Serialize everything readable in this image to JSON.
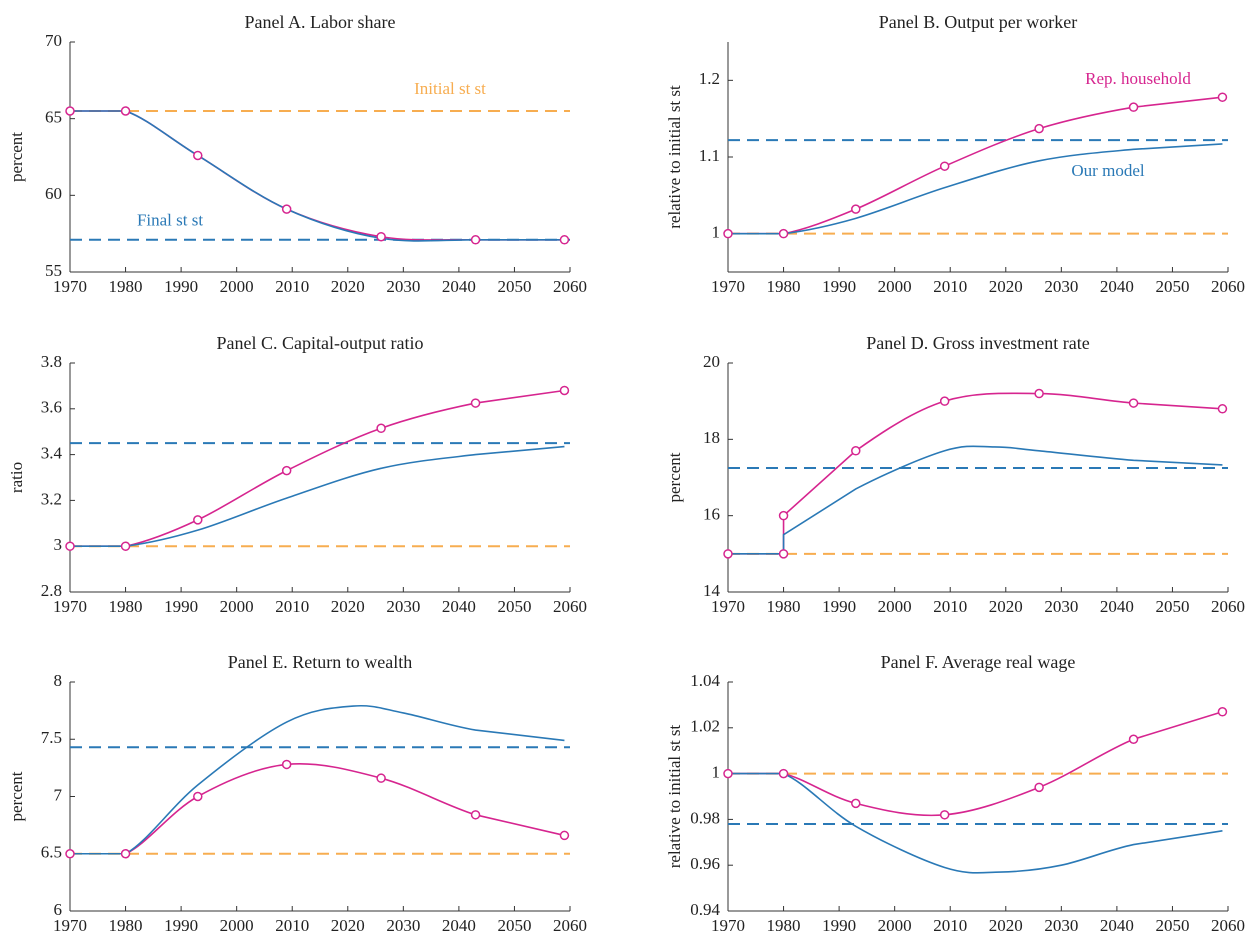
{
  "chart_data": [
    {
      "type": "line",
      "title": "Panel A. Labor share",
      "y_label": "percent",
      "xlim": [
        1970,
        2060
      ],
      "xticks": [
        1970,
        1980,
        1990,
        2000,
        2010,
        2020,
        2030,
        2040,
        2050,
        2060
      ],
      "ylim": [
        55,
        70
      ],
      "yticks": [
        55,
        60,
        65,
        70
      ],
      "series": [
        {
          "color": "#d6258f",
          "marker": "o",
          "x": [
            1970,
            1980,
            1993,
            2009,
            2026,
            2043,
            2059
          ],
          "values": [
            65.5,
            65.5,
            62.6,
            59.1,
            57.3,
            57.1,
            57.1
          ]
        },
        {
          "color": "#2a79b6",
          "x": [
            1970,
            1980,
            1993,
            2009,
            2026,
            2043,
            2059
          ],
          "values": [
            65.5,
            65.5,
            62.6,
            59.1,
            57.2,
            57.1,
            57.1
          ]
        },
        {
          "name": "Initial st st",
          "color": "#f7ad50",
          "dash": true,
          "x": [
            1970,
            2060
          ],
          "values": [
            65.5,
            65.5
          ]
        },
        {
          "name": "Final st st",
          "color": "#2a79b6",
          "dash": true,
          "x": [
            1970,
            2060
          ],
          "values": [
            57.1,
            57.1
          ]
        }
      ]
    },
    {
      "type": "line",
      "title": "Panel B. Output per worker",
      "y_label": "relative to initial st st",
      "xlim": [
        1970,
        2060
      ],
      "xticks": [
        1970,
        1980,
        1990,
        2000,
        2010,
        2020,
        2030,
        2040,
        2050,
        2060
      ],
      "ylim": [
        0.95,
        1.25
      ],
      "yticks": [
        1,
        1.1,
        1.2
      ],
      "series": [
        {
          "name": "Rep. household",
          "color": "#d6258f",
          "marker": "o",
          "x": [
            1970,
            1980,
            1993,
            2009,
            2026,
            2043,
            2059
          ],
          "values": [
            1,
            1,
            1.032,
            1.088,
            1.137,
            1.165,
            1.178
          ]
        },
        {
          "name": "Our model",
          "color": "#2a79b6",
          "x": [
            1970,
            1980,
            1993,
            2009,
            2026,
            2043,
            2059
          ],
          "values": [
            1,
            1,
            1.02,
            1.06,
            1.095,
            1.11,
            1.117
          ]
        },
        {
          "color": "#f7ad50",
          "dash": true,
          "x": [
            1970,
            2060
          ],
          "values": [
            1,
            1
          ]
        },
        {
          "color": "#2a79b6",
          "dash": true,
          "x": [
            1970,
            2060
          ],
          "values": [
            1.122,
            1.122
          ]
        }
      ]
    },
    {
      "type": "line",
      "title": "Panel C. Capital-output ratio",
      "y_label": "ratio",
      "xlim": [
        1970,
        2060
      ],
      "xticks": [
        1970,
        1980,
        1990,
        2000,
        2010,
        2020,
        2030,
        2040,
        2050,
        2060
      ],
      "ylim": [
        2.8,
        3.8
      ],
      "yticks": [
        2.8,
        3,
        3.2,
        3.4,
        3.6,
        3.8
      ],
      "series": [
        {
          "color": "#d6258f",
          "marker": "o",
          "x": [
            1970,
            1980,
            1993,
            2009,
            2026,
            2043,
            2059
          ],
          "values": [
            3,
            3,
            3.115,
            3.33,
            3.515,
            3.625,
            3.68
          ]
        },
        {
          "color": "#2a79b6",
          "x": [
            1970,
            1980,
            1993,
            2009,
            2026,
            2043,
            2059
          ],
          "values": [
            3,
            3,
            3.07,
            3.21,
            3.34,
            3.4,
            3.435
          ]
        },
        {
          "color": "#f7ad50",
          "dash": true,
          "x": [
            1970,
            2060
          ],
          "values": [
            3,
            3
          ]
        },
        {
          "color": "#2a79b6",
          "dash": true,
          "x": [
            1970,
            2060
          ],
          "values": [
            3.45,
            3.45
          ]
        }
      ]
    },
    {
      "type": "line",
      "title": "Panel D. Gross investment rate",
      "y_label": "percent",
      "xlim": [
        1970,
        2060
      ],
      "xticks": [
        1970,
        1980,
        1990,
        2000,
        2010,
        2020,
        2030,
        2040,
        2050,
        2060
      ],
      "ylim": [
        14,
        20
      ],
      "yticks": [
        14,
        16,
        18,
        20
      ],
      "series": [
        {
          "color": "#d6258f",
          "marker": "o",
          "x": [
            1970,
            1980,
            1980,
            1993,
            2009,
            2026,
            2043,
            2059
          ],
          "values": [
            15,
            15,
            16,
            17.7,
            19,
            19.2,
            18.95,
            18.8
          ]
        },
        {
          "color": "#2a79b6",
          "x": [
            1970,
            1980,
            1980,
            1993,
            2009,
            2018,
            2026,
            2043,
            2059
          ],
          "values": [
            15,
            15,
            15.5,
            16.7,
            17.7,
            17.8,
            17.7,
            17.45,
            17.33
          ]
        },
        {
          "color": "#f7ad50",
          "dash": true,
          "x": [
            1970,
            2060
          ],
          "values": [
            15,
            15
          ]
        },
        {
          "color": "#2a79b6",
          "dash": true,
          "x": [
            1970,
            2060
          ],
          "values": [
            17.25,
            17.25
          ]
        }
      ]
    },
    {
      "type": "line",
      "title": "Panel E. Return to wealth",
      "y_label": "percent",
      "xlim": [
        1970,
        2060
      ],
      "xticks": [
        1970,
        1980,
        1990,
        2000,
        2010,
        2020,
        2030,
        2040,
        2050,
        2060
      ],
      "ylim": [
        6,
        8
      ],
      "yticks": [
        6,
        6.5,
        7,
        7.5,
        8
      ],
      "series": [
        {
          "color": "#d6258f",
          "marker": "o",
          "x": [
            1970,
            1980,
            1993,
            2009,
            2026,
            2043,
            2059
          ],
          "values": [
            6.5,
            6.5,
            7,
            7.28,
            7.16,
            6.84,
            6.66
          ]
        },
        {
          "color": "#2a79b6",
          "x": [
            1970,
            1980,
            1993,
            2009,
            2021,
            2030,
            2043,
            2059
          ],
          "values": [
            6.5,
            6.5,
            7.1,
            7.65,
            7.79,
            7.73,
            7.58,
            7.49
          ]
        },
        {
          "color": "#f7ad50",
          "dash": true,
          "x": [
            1970,
            2060
          ],
          "values": [
            6.5,
            6.5
          ]
        },
        {
          "color": "#2a79b6",
          "dash": true,
          "x": [
            1970,
            2060
          ],
          "values": [
            7.43,
            7.43
          ]
        }
      ]
    },
    {
      "type": "line",
      "title": "Panel F. Average real wage",
      "y_label": "relative to initial st st",
      "xlim": [
        1970,
        2060
      ],
      "xticks": [
        1970,
        1980,
        1990,
        2000,
        2010,
        2020,
        2030,
        2040,
        2050,
        2060
      ],
      "ylim": [
        0.94,
        1.04
      ],
      "yticks": [
        0.94,
        0.96,
        0.98,
        1,
        1.02,
        1.04
      ],
      "series": [
        {
          "color": "#d6258f",
          "marker": "o",
          "x": [
            1970,
            1980,
            1993,
            2009,
            2026,
            2043,
            2059
          ],
          "values": [
            1,
            1,
            0.987,
            0.982,
            0.994,
            1.015,
            1.027
          ]
        },
        {
          "color": "#2a79b6",
          "x": [
            1970,
            1980,
            1993,
            2009,
            2019,
            2030,
            2043,
            2059
          ],
          "values": [
            1,
            1,
            0.977,
            0.959,
            0.957,
            0.96,
            0.969,
            0.975
          ]
        },
        {
          "color": "#f7ad50",
          "dash": true,
          "x": [
            1970,
            2060
          ],
          "values": [
            1,
            1
          ]
        },
        {
          "color": "#2a79b6",
          "dash": true,
          "x": [
            1970,
            2060
          ],
          "values": [
            0.978,
            0.978
          ]
        }
      ]
    }
  ]
}
